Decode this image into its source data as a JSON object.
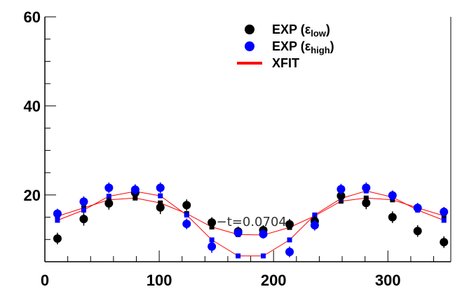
{
  "chart_data": {
    "type": "scatter",
    "title": "",
    "xlabel": "",
    "ylabel": "",
    "xlim": [
      0,
      355
    ],
    "ylim": [
      5,
      60
    ],
    "x_ticks": [
      0,
      100,
      200,
      300
    ],
    "y_ticks": [
      20,
      40,
      60
    ],
    "x_tick_labels": [
      "0",
      "100",
      "200",
      "300"
    ],
    "y_tick_labels": [
      "20",
      "40",
      "60"
    ],
    "grid": false,
    "legend_position": "top-right",
    "legend": [
      {
        "label": "EXP (ε",
        "sub": "low",
        "close": ")",
        "marker": "circle",
        "color": "#000000"
      },
      {
        "label": "EXP (ε",
        "sub": "high",
        "close": ")",
        "marker": "circle",
        "color": "#0000ff"
      },
      {
        "label": "XFIT",
        "sub": "",
        "close": "",
        "marker": "line",
        "color": "#ff0000"
      }
    ],
    "annotation": "−t=0.0704",
    "x": [
      11,
      34,
      56,
      79,
      101,
      124,
      146,
      169,
      191,
      214,
      236,
      259,
      281,
      304,
      326,
      349
    ],
    "series": [
      {
        "name": "EXP (εlow)",
        "color": "#000000",
        "values": [
          10.2,
          14.6,
          18.1,
          20.5,
          17.2,
          17.7,
          13.8,
          11.8,
          12.1,
          13.4,
          14.1,
          19.8,
          18.2,
          15.0,
          11.9,
          9.4
        ],
        "errors": [
          1.3,
          1.5,
          1.4,
          1.5,
          1.5,
          1.3,
          1.2,
          1.1,
          1.1,
          1.2,
          1.3,
          1.4,
          1.4,
          1.3,
          1.3,
          1.3
        ]
      },
      {
        "name": "EXP (εhigh)",
        "color": "#0000ff",
        "values": [
          15.8,
          18.5,
          21.6,
          21.2,
          21.6,
          13.5,
          8.4,
          11.5,
          11.2,
          7.2,
          13.2,
          21.3,
          21.6,
          19.9,
          17.1,
          16.2
        ],
        "errors": [
          1.1,
          1.2,
          1.2,
          1.2,
          1.2,
          1.2,
          1.4,
          1.0,
          1.0,
          1.2,
          1.2,
          1.2,
          1.2,
          1.1,
          1.1,
          1.1
        ]
      }
    ],
    "fit_series": [
      {
        "name": "XFIT low",
        "color": "#ff0000",
        "marker_color": "#000000",
        "values": [
          15.2,
          17.1,
          18.9,
          19.3,
          18.2,
          15.8,
          12.8,
          11.1,
          11.0,
          12.7,
          15.3,
          18.6,
          19.3,
          18.9,
          17.1,
          15.3
        ]
      },
      {
        "name": "XFIT high",
        "color": "#ff0000",
        "marker_color": "#0000ff",
        "values": [
          14.3,
          16.6,
          19.7,
          20.8,
          19.8,
          15.5,
          9.9,
          6.3,
          6.3,
          9.9,
          15.5,
          19.2,
          20.9,
          19.5,
          16.6,
          14.3
        ]
      }
    ]
  }
}
